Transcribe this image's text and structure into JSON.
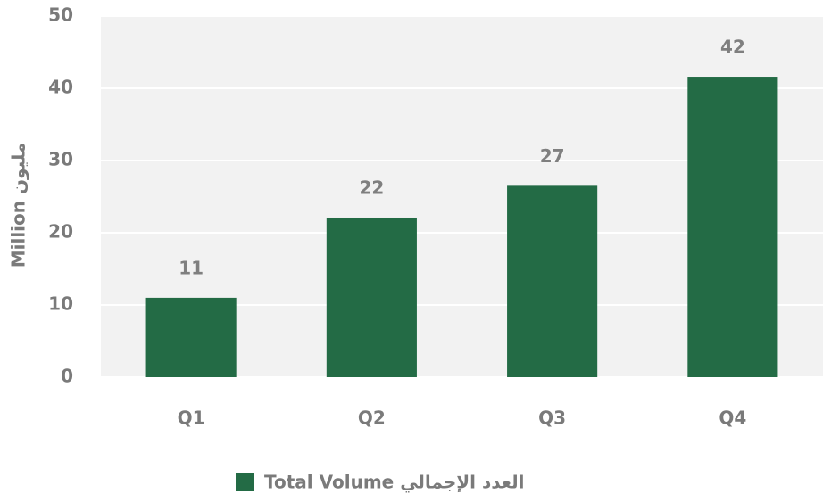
{
  "chart_data": {
    "type": "bar",
    "y_axis_label": "Million مليون",
    "categories": [
      "Q1",
      "Q2",
      "Q3",
      "Q4"
    ],
    "series": [
      {
        "name": "Total Volume العدد الإجمالي",
        "color": "#236b45",
        "values": [
          11,
          22.1,
          26.5,
          41.6
        ],
        "value_labels": [
          "11",
          "22",
          "27",
          "42"
        ]
      }
    ],
    "ylim": [
      0,
      50
    ],
    "yticks": [
      0,
      10,
      20,
      30,
      40,
      50
    ],
    "grid": true
  }
}
